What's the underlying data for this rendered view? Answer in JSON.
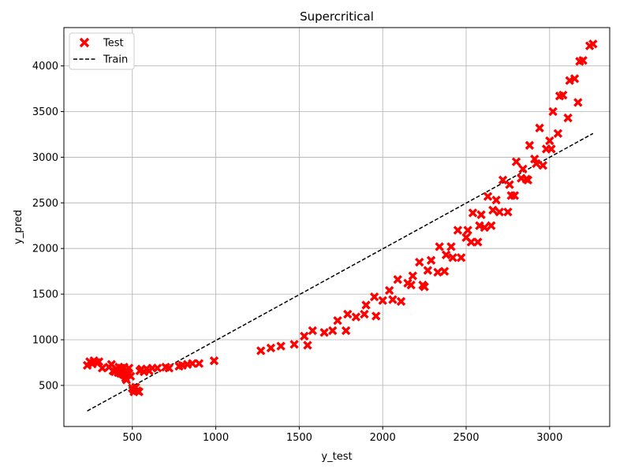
{
  "chart_data": {
    "type": "scatter",
    "title": "Supercritical",
    "xlabel": "y_test",
    "ylabel": "y_pred",
    "xlim": [
      90,
      3360
    ],
    "ylim": [
      50,
      4420
    ],
    "xticks": [
      500,
      1000,
      1500,
      2000,
      2500,
      3000
    ],
    "yticks": [
      500,
      1000,
      1500,
      2000,
      2500,
      3000,
      3500,
      4000
    ],
    "grid": true,
    "legend": {
      "location": "top-left",
      "entries": [
        "Test",
        "Train"
      ]
    },
    "colors": {
      "test": "#ff0000",
      "train": "#000000"
    },
    "series": [
      {
        "name": "Test",
        "marker": "x",
        "points": [
          [
            230,
            720
          ],
          [
            245,
            760
          ],
          [
            260,
            735
          ],
          [
            270,
            770
          ],
          [
            285,
            750
          ],
          [
            300,
            760
          ],
          [
            320,
            690
          ],
          [
            360,
            700
          ],
          [
            375,
            730
          ],
          [
            385,
            660
          ],
          [
            395,
            650
          ],
          [
            405,
            680
          ],
          [
            415,
            640
          ],
          [
            420,
            700
          ],
          [
            430,
            630
          ],
          [
            435,
            690
          ],
          [
            445,
            620
          ],
          [
            450,
            700
          ],
          [
            455,
            610
          ],
          [
            460,
            580
          ],
          [
            465,
            560
          ],
          [
            470,
            650
          ],
          [
            475,
            620
          ],
          [
            480,
            690
          ],
          [
            490,
            600
          ],
          [
            500,
            470
          ],
          [
            505,
            460
          ],
          [
            510,
            430
          ],
          [
            520,
            480
          ],
          [
            530,
            440
          ],
          [
            540,
            430
          ],
          [
            545,
            660
          ],
          [
            555,
            680
          ],
          [
            570,
            650
          ],
          [
            585,
            680
          ],
          [
            600,
            660
          ],
          [
            620,
            690
          ],
          [
            650,
            690
          ],
          [
            700,
            700
          ],
          [
            720,
            690
          ],
          [
            780,
            710
          ],
          [
            800,
            720
          ],
          [
            830,
            730
          ],
          [
            860,
            740
          ],
          [
            900,
            740
          ],
          [
            990,
            770
          ],
          [
            1270,
            880
          ],
          [
            1330,
            910
          ],
          [
            1390,
            930
          ],
          [
            1470,
            950
          ],
          [
            1530,
            1040
          ],
          [
            1550,
            940
          ],
          [
            1580,
            1100
          ],
          [
            1650,
            1080
          ],
          [
            1700,
            1100
          ],
          [
            1730,
            1210
          ],
          [
            1780,
            1100
          ],
          [
            1790,
            1280
          ],
          [
            1840,
            1250
          ],
          [
            1890,
            1280
          ],
          [
            1900,
            1380
          ],
          [
            1950,
            1470
          ],
          [
            1960,
            1260
          ],
          [
            2000,
            1430
          ],
          [
            2040,
            1540
          ],
          [
            2060,
            1440
          ],
          [
            2090,
            1660
          ],
          [
            2110,
            1420
          ],
          [
            2150,
            1620
          ],
          [
            2170,
            1600
          ],
          [
            2180,
            1700
          ],
          [
            2220,
            1850
          ],
          [
            2240,
            1600
          ],
          [
            2250,
            1580
          ],
          [
            2270,
            1760
          ],
          [
            2290,
            1870
          ],
          [
            2330,
            1740
          ],
          [
            2340,
            2020
          ],
          [
            2370,
            1750
          ],
          [
            2380,
            1930
          ],
          [
            2410,
            2020
          ],
          [
            2420,
            1900
          ],
          [
            2450,
            2200
          ],
          [
            2470,
            1900
          ],
          [
            2500,
            2120
          ],
          [
            2510,
            2200
          ],
          [
            2530,
            2070
          ],
          [
            2540,
            2390
          ],
          [
            2570,
            2070
          ],
          [
            2580,
            2250
          ],
          [
            2590,
            2370
          ],
          [
            2610,
            2230
          ],
          [
            2630,
            2570
          ],
          [
            2650,
            2250
          ],
          [
            2660,
            2420
          ],
          [
            2680,
            2530
          ],
          [
            2700,
            2400
          ],
          [
            2720,
            2750
          ],
          [
            2750,
            2400
          ],
          [
            2760,
            2700
          ],
          [
            2770,
            2580
          ],
          [
            2790,
            2580
          ],
          [
            2800,
            2950
          ],
          [
            2830,
            2770
          ],
          [
            2840,
            2870
          ],
          [
            2860,
            2760
          ],
          [
            2870,
            2750
          ],
          [
            2880,
            3130
          ],
          [
            2910,
            2980
          ],
          [
            2920,
            2930
          ],
          [
            2940,
            3320
          ],
          [
            2960,
            2910
          ],
          [
            2980,
            3090
          ],
          [
            3000,
            3180
          ],
          [
            3010,
            3090
          ],
          [
            3020,
            3500
          ],
          [
            3050,
            3260
          ],
          [
            3060,
            3670
          ],
          [
            3080,
            3680
          ],
          [
            3110,
            3430
          ],
          [
            3120,
            3840
          ],
          [
            3150,
            3860
          ],
          [
            3170,
            3600
          ],
          [
            3180,
            4050
          ],
          [
            3200,
            4060
          ],
          [
            3240,
            4220
          ],
          [
            3260,
            4240
          ]
        ]
      },
      {
        "name": "Train",
        "style": "dashed",
        "points": [
          [
            230,
            220
          ],
          [
            3260,
            3260
          ]
        ]
      }
    ]
  }
}
